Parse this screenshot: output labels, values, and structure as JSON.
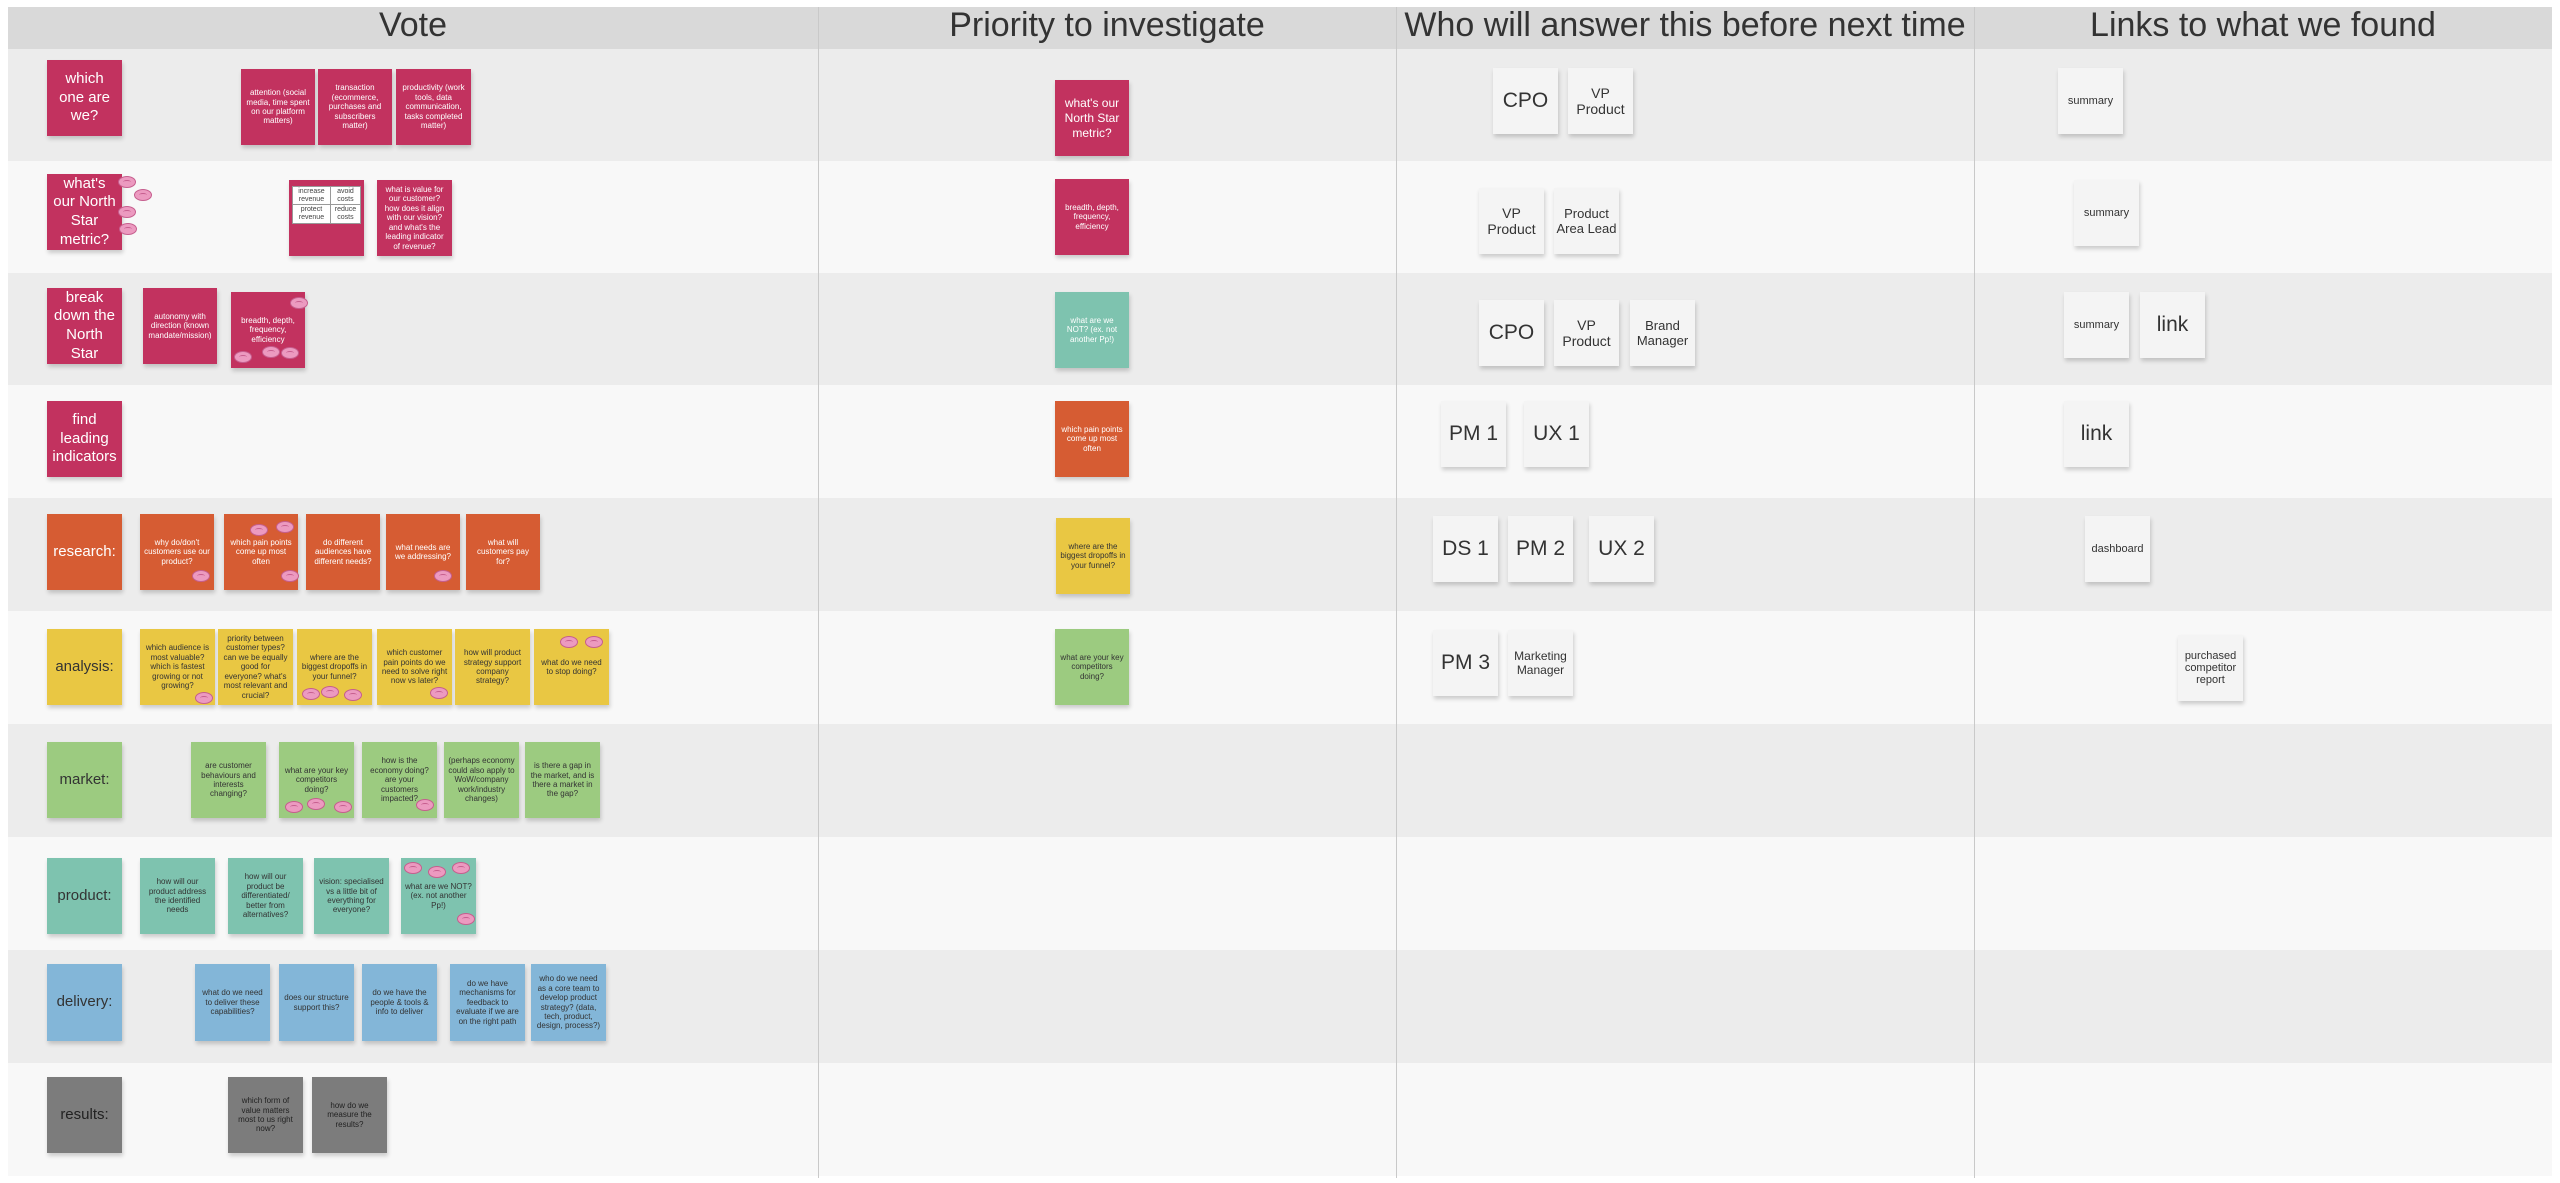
{
  "columns": [
    "Vote",
    "Priority to investigate",
    "Who will answer this before next time",
    "Links to what we found"
  ],
  "colors": {
    "magenta": "#c2325f",
    "orange": "#d65c33",
    "yellow": "#e9c743",
    "green": "#9ccb80",
    "teal": "#7ec3af",
    "blue": "#83b6d8",
    "gray": "#7c7c7c",
    "white_note": "#f4f4f4",
    "vote_reaction": "#ec9ac0"
  },
  "vote_reaction_icon": "brain-icon",
  "rows": [
    {
      "label": "which one are we?",
      "questions": [
        "attention (social media, time spent on our platform matters)",
        "transaction (ecommerce, purchases and subscribers matter)",
        "productivity (work tools, data communication, tasks completed matter)"
      ],
      "priority": "what's our North Star metric?",
      "owners": [
        "CPO",
        "VP Product"
      ],
      "links": [
        "summary"
      ]
    },
    {
      "label": "what's our North Star metric?",
      "questions": [
        "",
        "what is value for our customer? how does it align with our vision? and what's the leading indicator of revenue?"
      ],
      "value_grid": [
        [
          "increase revenue",
          "avoid costs"
        ],
        [
          "protect revenue",
          "reduce costs"
        ]
      ],
      "priority": "breadth, depth, frequency, efficiency",
      "owners": [
        "VP Product",
        "Product Area Lead"
      ],
      "links": [
        "summary"
      ]
    },
    {
      "label": "break down the North Star",
      "questions": [
        "autonomy with direction (known mandate/mission)",
        "breadth, depth, frequency, efficiency"
      ],
      "priority": "what are we NOT? (ex. not another Pp!)",
      "owners": [
        "CPO",
        "VP Product",
        "Brand Manager"
      ],
      "links": [
        "summary",
        "link"
      ]
    },
    {
      "label": "find leading indicators",
      "questions": [],
      "priority": "which pain points come up most often",
      "owners": [
        "PM 1",
        "UX 1"
      ],
      "links": [
        "link"
      ]
    },
    {
      "label": "research:",
      "questions": [
        "why do/don't customers use our product?",
        "which pain points come up most often",
        "do different audiences have different needs?",
        "what needs are we addressing?",
        "what will customers pay for?"
      ],
      "priority": "where are the biggest dropoffs in your funnel?",
      "owners": [
        "DS 1",
        "PM 2",
        "UX 2"
      ],
      "links": [
        "dashboard"
      ]
    },
    {
      "label": "analysis:",
      "questions": [
        "which audience is most valuable? which is fastest growing or not growing?",
        "priority between customer types? can we be equally good for everyone? what's most relevant and crucial?",
        "where are the biggest dropoffs in your funnel?",
        "which customer pain points do we need to solve right now vs later?",
        "how will product strategy support company strategy?",
        "what do we need to stop doing?"
      ],
      "priority": "what are your key competitors doing?",
      "owners": [
        "PM 3",
        "Marketing Manager"
      ],
      "links": [
        "purchased competitor report"
      ]
    },
    {
      "label": "market:",
      "questions": [
        "are customer behaviours and interests changing?",
        "what are your key competitors doing?",
        "how is the economy doing? are your customers impacted?",
        "(perhaps economy could also apply to WoW/company work/industry changes)",
        "is there a gap in the market, and is there a market in the gap?"
      ],
      "priority": "",
      "owners": [],
      "links": []
    },
    {
      "label": "product:",
      "questions": [
        "how will our product address the identified needs",
        "how will our product be differentiated/ better from alternatives?",
        "vision: specialised vs a little bit of everything for everyone?",
        "what are we NOT? (ex. not another Pp!)"
      ],
      "priority": "",
      "owners": [],
      "links": []
    },
    {
      "label": "delivery:",
      "questions": [
        "what do we need to deliver these capabilities?",
        "does our structure support this?",
        "do we have the people & tools & info to deliver",
        "do we have mechanisms for feedback to evaluate if we are on the right path",
        "who do we need as a core team to develop product strategy? (data, tech, product, design, process?)"
      ],
      "priority": "",
      "owners": [],
      "links": []
    },
    {
      "label": "results:",
      "questions": [
        "which form of value matters most to us right now?",
        "how do we measure the results?"
      ],
      "priority": "",
      "owners": [],
      "links": []
    }
  ]
}
